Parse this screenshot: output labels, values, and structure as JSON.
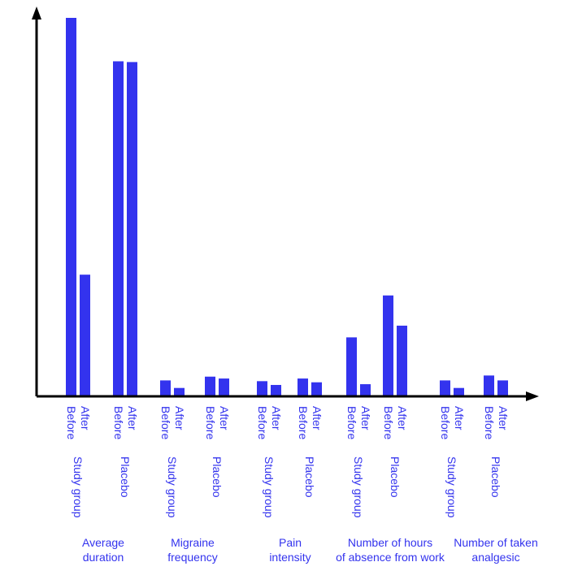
{
  "chart_data": {
    "type": "bar",
    "title": "",
    "xlabel": "",
    "ylabel": "",
    "ylim": [
      0,
      100
    ],
    "grid": false,
    "bar_color": "#3333ee",
    "label_color": "#3333ee",
    "axis_color": "#000000",
    "groups": [
      {
        "label": [
          "Average",
          "duration"
        ],
        "subgroups": [
          {
            "name": "Study group",
            "values": [
              {
                "label": "Before",
                "value": 100
              },
              {
                "label": "After",
                "value": 32
              }
            ]
          },
          {
            "name": "Placebo",
            "values": [
              {
                "label": "Before",
                "value": 88.5
              },
              {
                "label": "After",
                "value": 88.3
              }
            ]
          }
        ]
      },
      {
        "label": [
          "Migraine",
          "frequency"
        ],
        "subgroups": [
          {
            "name": "Study group",
            "values": [
              {
                "label": "Before",
                "value": 4
              },
              {
                "label": "After",
                "value": 2
              }
            ]
          },
          {
            "name": "Placebo",
            "values": [
              {
                "label": "Before",
                "value": 5
              },
              {
                "label": "After",
                "value": 4.5
              }
            ]
          }
        ]
      },
      {
        "label": [
          "Pain",
          "intensity"
        ],
        "subgroups": [
          {
            "name": "Study group",
            "values": [
              {
                "label": "Before",
                "value": 3.8
              },
              {
                "label": "After",
                "value": 2.8
              }
            ]
          },
          {
            "name": "Placebo",
            "values": [
              {
                "label": "Before",
                "value": 4.5
              },
              {
                "label": "After",
                "value": 3.5
              }
            ]
          }
        ]
      },
      {
        "label": [
          "Number of hours",
          "of absence from work"
        ],
        "subgroups": [
          {
            "name": "Study group",
            "values": [
              {
                "label": "Before",
                "value": 15.4
              },
              {
                "label": "After",
                "value": 3
              }
            ]
          },
          {
            "name": "Placebo",
            "values": [
              {
                "label": "Before",
                "value": 26.5
              },
              {
                "label": "After",
                "value": 18.5
              }
            ]
          }
        ]
      },
      {
        "label": [
          "Number of taken",
          "analgesic"
        ],
        "subgroups": [
          {
            "name": "Study group",
            "values": [
              {
                "label": "Before",
                "value": 4
              },
              {
                "label": "After",
                "value": 2
              }
            ]
          },
          {
            "name": "Placebo",
            "values": [
              {
                "label": "Before",
                "value": 5.3
              },
              {
                "label": "After",
                "value": 4
              }
            ]
          }
        ]
      }
    ]
  }
}
